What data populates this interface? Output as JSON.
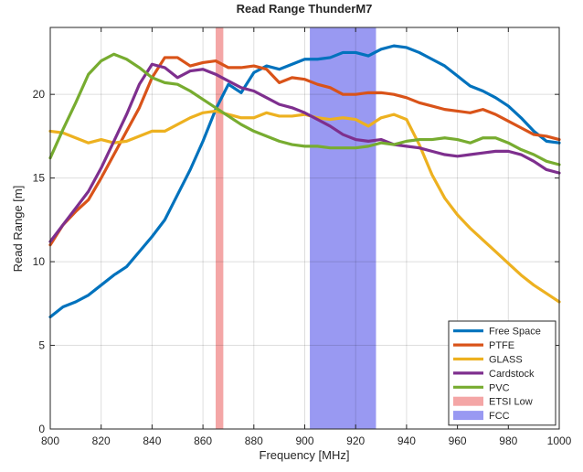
{
  "chart_data": {
    "type": "line",
    "title": "Read Range ThunderM7",
    "xlabel": "Frequency [MHz]",
    "ylabel": "Read Range [m]",
    "xlim": [
      800,
      1000
    ],
    "ylim": [
      0,
      24
    ],
    "xticks": [
      800,
      820,
      840,
      860,
      880,
      900,
      920,
      940,
      960,
      980,
      1000
    ],
    "yticks": [
      0,
      5,
      10,
      15,
      20
    ],
    "grid": true,
    "legend_position": "bottom-right",
    "bands": [
      {
        "name": "ETSI Low",
        "x0": 865,
        "x1": 868,
        "color": "#f4a6a6"
      },
      {
        "name": "FCC",
        "x0": 902,
        "x1": 928,
        "color": "#9999f2"
      }
    ],
    "x": [
      800,
      805,
      810,
      815,
      820,
      825,
      830,
      835,
      840,
      845,
      850,
      855,
      860,
      865,
      870,
      875,
      880,
      885,
      890,
      895,
      900,
      905,
      910,
      915,
      920,
      925,
      930,
      935,
      940,
      945,
      950,
      955,
      960,
      965,
      970,
      975,
      980,
      985,
      990,
      995,
      1000
    ],
    "series": [
      {
        "name": "Free Space",
        "color": "#0072BD",
        "values": [
          6.7,
          7.3,
          7.6,
          8.0,
          8.6,
          9.2,
          9.7,
          10.6,
          11.5,
          12.5,
          14.0,
          15.5,
          17.2,
          19.1,
          20.6,
          20.1,
          21.3,
          21.7,
          21.5,
          21.8,
          22.1,
          22.1,
          22.2,
          22.5,
          22.5,
          22.3,
          22.7,
          22.9,
          22.8,
          22.5,
          22.1,
          21.7,
          21.1,
          20.5,
          20.2,
          19.8,
          19.3,
          18.6,
          17.8,
          17.2,
          17.1
        ]
      },
      {
        "name": "PTFE",
        "color": "#D95319",
        "values": [
          11.0,
          12.2,
          13.0,
          13.7,
          15.0,
          16.4,
          17.8,
          19.2,
          21.0,
          22.2,
          22.2,
          21.7,
          21.9,
          22.0,
          21.6,
          21.6,
          21.7,
          21.5,
          20.7,
          21.0,
          20.9,
          20.6,
          20.4,
          20.0,
          20.0,
          20.1,
          20.1,
          20.0,
          19.8,
          19.5,
          19.3,
          19.1,
          19.0,
          18.9,
          19.1,
          18.8,
          18.4,
          18.0,
          17.6,
          17.5,
          17.3
        ]
      },
      {
        "name": "GLASS",
        "color": "#EDB120",
        "values": [
          17.8,
          17.7,
          17.4,
          17.1,
          17.3,
          17.1,
          17.2,
          17.5,
          17.8,
          17.8,
          18.2,
          18.6,
          18.9,
          19.0,
          18.8,
          18.6,
          18.6,
          18.9,
          18.7,
          18.7,
          18.8,
          18.6,
          18.5,
          18.6,
          18.5,
          18.1,
          18.6,
          18.8,
          18.5,
          17.0,
          15.2,
          13.8,
          12.8,
          12.0,
          11.3,
          10.6,
          9.9,
          9.2,
          8.6,
          8.1,
          7.6
        ]
      },
      {
        "name": "Cardstock",
        "color": "#7E2F8E",
        "values": [
          11.2,
          12.2,
          13.2,
          14.2,
          15.6,
          17.2,
          18.8,
          20.6,
          21.8,
          21.6,
          21.0,
          21.4,
          21.5,
          21.2,
          20.8,
          20.4,
          20.2,
          19.8,
          19.4,
          19.2,
          18.9,
          18.5,
          18.1,
          17.6,
          17.3,
          17.2,
          17.3,
          17.0,
          16.9,
          16.8,
          16.6,
          16.4,
          16.3,
          16.4,
          16.5,
          16.6,
          16.6,
          16.4,
          16.0,
          15.5,
          15.3
        ]
      },
      {
        "name": "PVC",
        "color": "#77AC30",
        "values": [
          16.2,
          17.9,
          19.5,
          21.2,
          22.0,
          22.4,
          22.1,
          21.6,
          21.0,
          20.7,
          20.6,
          20.2,
          19.7,
          19.2,
          18.7,
          18.2,
          17.8,
          17.5,
          17.2,
          17.0,
          16.9,
          16.9,
          16.8,
          16.8,
          16.8,
          16.9,
          17.1,
          17.0,
          17.2,
          17.3,
          17.3,
          17.4,
          17.3,
          17.1,
          17.4,
          17.4,
          17.1,
          16.7,
          16.4,
          16.0,
          15.8
        ]
      }
    ]
  }
}
